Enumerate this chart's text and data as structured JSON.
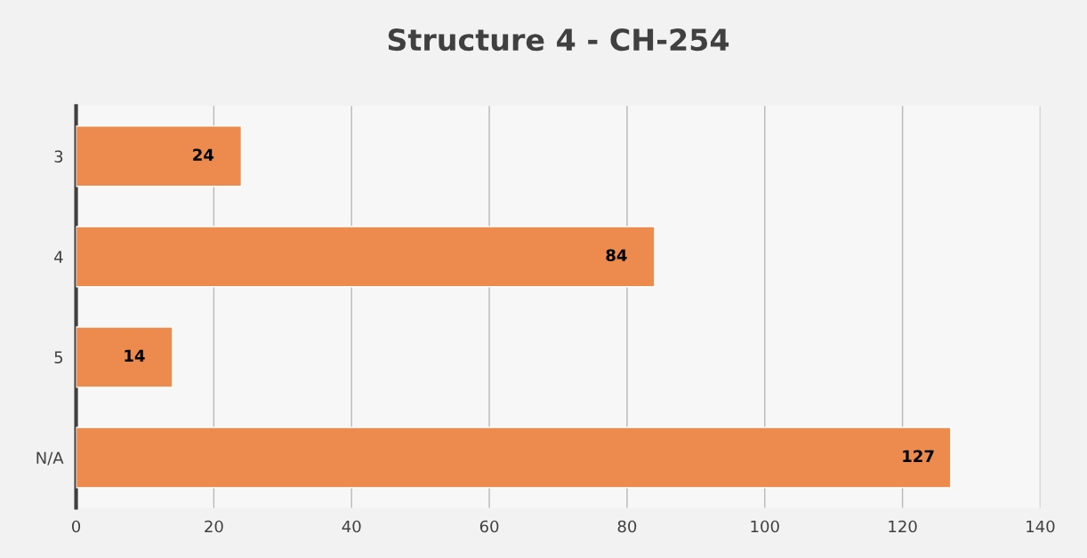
{
  "chart_data": {
    "type": "bar",
    "title": "Structure 4 - CH-254",
    "orientation": "horizontal",
    "categories": [
      "3",
      "4",
      "5",
      "N/A"
    ],
    "values": [
      24,
      84,
      14,
      127
    ],
    "color": "#ed8b4f",
    "xlim": [
      0,
      140
    ],
    "xticks": [
      0,
      20,
      40,
      60,
      80,
      100,
      120,
      140
    ],
    "grid": "x",
    "data_labels": true,
    "legend": false
  }
}
